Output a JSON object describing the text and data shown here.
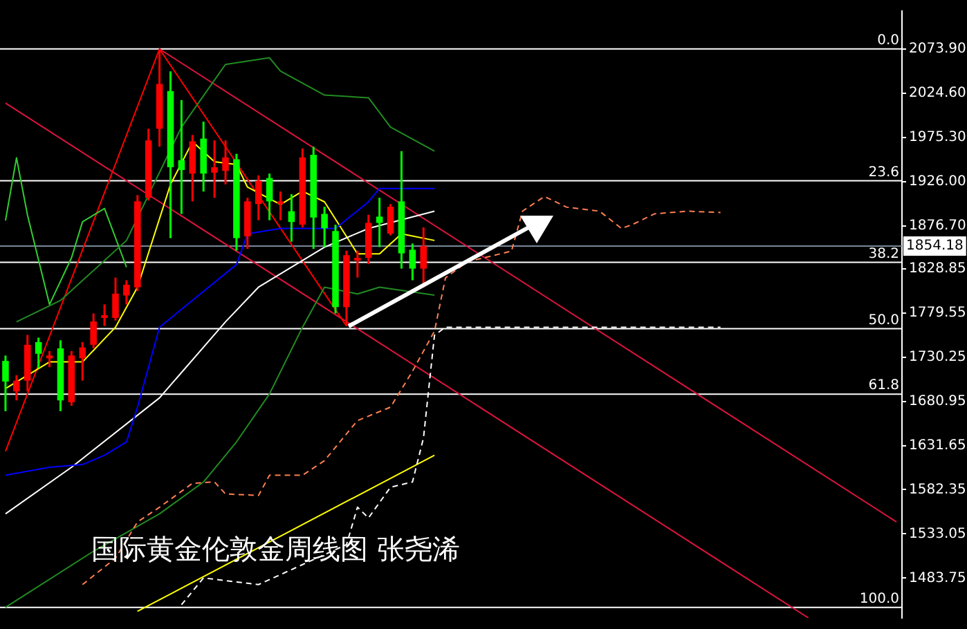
{
  "chart_data": {
    "type": "candlestick",
    "title": "国际黄金伦敦金周线图 张尧浠",
    "categories": [
      null,
      null,
      null,
      null,
      null,
      null,
      null,
      null,
      null,
      null,
      null,
      null,
      null,
      null,
      null,
      null,
      null,
      null,
      null,
      null,
      null,
      null,
      null,
      null,
      null,
      null,
      null,
      null,
      null,
      null,
      null,
      null,
      null,
      null,
      null,
      null,
      null,
      null,
      null,
      null,
      null,
      null,
      null,
      null,
      null,
      null,
      null,
      null,
      null,
      null,
      null,
      null,
      null,
      null,
      null,
      null,
      null,
      null,
      null,
      null,
      null,
      null,
      null,
      null,
      null,
      null,
      null,
      null,
      null,
      null,
      null,
      null,
      null,
      null,
      null,
      null,
      null,
      null,
      null,
      null,
      null,
      null
    ],
    "ohlc": [
      [
        1726,
        1732,
        1670,
        1703
      ],
      [
        1692,
        1710,
        1682,
        1704
      ],
      [
        1704,
        1755,
        1692,
        1744
      ],
      [
        1747,
        1752,
        1718,
        1734
      ],
      [
        1729,
        1737,
        1719,
        1732
      ],
      [
        1740,
        1749,
        1670,
        1682
      ],
      [
        1680,
        1737,
        1676,
        1732
      ],
      [
        1729,
        1747,
        1704,
        1741
      ],
      [
        1744,
        1779,
        1740,
        1770
      ],
      [
        1774,
        1789,
        1765,
        1777
      ],
      [
        1774,
        1819,
        1771,
        1801
      ],
      [
        1799,
        1816,
        1789,
        1811
      ],
      [
        1808,
        1911,
        1804,
        1904
      ],
      [
        1908,
        1985,
        1905,
        1972
      ],
      [
        1985,
        2074,
        1965,
        2035
      ],
      [
        2027,
        2049,
        1863,
        1942
      ],
      [
        1950,
        2017,
        1890,
        1939
      ],
      [
        1935,
        1978,
        1904,
        1971
      ],
      [
        1974,
        1993,
        1915,
        1935
      ],
      [
        1936,
        1972,
        1908,
        1942
      ],
      [
        1938,
        1972,
        1923,
        1953
      ],
      [
        1951,
        1957,
        1849,
        1863
      ],
      [
        1865,
        1908,
        1851,
        1904
      ],
      [
        1901,
        1933,
        1883,
        1927
      ],
      [
        1930,
        1935,
        1883,
        1904
      ],
      [
        1901,
        1915,
        1883,
        1904
      ],
      [
        1893,
        1912,
        1859,
        1881
      ],
      [
        1878,
        1963,
        1875,
        1953
      ],
      [
        1956,
        1965,
        1851,
        1886
      ],
      [
        1890,
        1898,
        1853,
        1874
      ],
      [
        1871,
        1878,
        1779,
        1786
      ],
      [
        1786,
        1849,
        1765,
        1844
      ],
      [
        1838,
        1849,
        1819,
        1841
      ],
      [
        1841,
        1889,
        1834,
        1880
      ],
      [
        1887,
        1908,
        1853,
        1880
      ],
      [
        1868,
        1901,
        1866,
        1898
      ],
      [
        1904,
        1960,
        1829,
        1846
      ],
      [
        1850,
        1857,
        1816,
        1829
      ],
      [
        1829,
        1875,
        1808,
        1854
      ],
      null,
      null,
      null,
      null,
      null,
      null,
      null,
      null,
      null,
      null,
      null,
      null,
      null,
      null,
      null,
      null,
      null,
      null,
      null,
      null,
      null,
      null,
      null,
      null,
      null,
      null,
      null,
      null,
      null,
      null,
      null,
      null,
      null,
      null,
      null,
      null,
      null,
      null,
      null,
      null,
      null,
      null,
      null
    ],
    "colors": [
      "#00ff00",
      "#ff0000",
      "#ff0000",
      "#00ff00",
      "#ff0000",
      "#00ff00",
      "#ff0000",
      "#ff0000",
      "#ff0000",
      "#ff0000",
      "#ff0000",
      "#ff0000",
      "#ff0000",
      "#ff0000",
      "#ff0000",
      "#00ff00",
      "#00ff00",
      "#ff0000",
      "#00ff00",
      "#ff0000",
      "#ff0000",
      "#00ff00",
      "#ff0000",
      "#ff0000",
      "#00ff00",
      "#ff0000",
      "#00ff00",
      "#ff0000",
      "#00ff00",
      "#00ff00",
      "#00ff00",
      "#ff0000",
      "#ff0000",
      "#ff0000",
      "#00ff00",
      "#ff0000",
      "#00ff00",
      "#00ff00",
      "#ff0000",
      null,
      null,
      null,
      null,
      null,
      null,
      null,
      null,
      null,
      null,
      null,
      null,
      null,
      null,
      null,
      null,
      null,
      null,
      null,
      null,
      null,
      null,
      null,
      null,
      null,
      null,
      null,
      null,
      null,
      null,
      null,
      null,
      null,
      null,
      null,
      null,
      null,
      null,
      null,
      null,
      null,
      null,
      null
    ],
    "series": [
      {
        "type": "line",
        "color": "#ff7f50",
        "line_style": "dashed",
        "values": [
          null,
          null,
          null,
          null,
          null,
          null,
          null,
          1476.5,
          null,
          null,
          1506,
          null,
          1546.4,
          null,
          1562.8,
          null,
          null,
          1589.5,
          null,
          1591,
          1577.6,
          null,
          null,
          1576,
          1598.5,
          null,
          null,
          1598.5,
          null,
          1614.8,
          null,
          null,
          1659.5,
          null,
          null,
          1674.4,
          null,
          1714.5,
          null,
          1759.2,
          1818.7,
          null,
          1836.6,
          null,
          null,
          null,
          1848.5,
          1893.1,
          null,
          1909.5,
          null,
          1897.6,
          null,
          null,
          1893.1,
          null,
          1873.8,
          1878.2,
          null,
          1890.1,
          null,
          null,
          1893.1,
          null,
          null,
          1891.6,
          null,
          null,
          null,
          null,
          null,
          null,
          null,
          null,
          null,
          null,
          null,
          null,
          null,
          null,
          null,
          null
        ]
      },
      {
        "type": "line",
        "color": "#ffffff",
        "line_style": "dashed",
        "values": [
          null,
          null,
          null,
          null,
          null,
          null,
          null,
          null,
          null,
          null,
          null,
          null,
          null,
          null,
          null,
          null,
          1454.1,
          null,
          1483.9,
          null,
          null,
          null,
          null,
          1476.5,
          null,
          null,
          null,
          null,
          null,
          null,
          null,
          1521.1,
          1562.8,
          1550.9,
          null,
          1585.1,
          null,
          1591,
          1640.1,
          1754.7,
          1763.6,
          null,
          null,
          null,
          null,
          null,
          null,
          null,
          null,
          null,
          null,
          null,
          null,
          null,
          1763.6,
          null,
          null,
          null,
          null,
          null,
          null,
          null,
          null,
          null,
          null,
          1763.6,
          null,
          null,
          null,
          null,
          null,
          null,
          null,
          null,
          null,
          null,
          null,
          null,
          null,
          null,
          null,
          null
        ]
      },
      {
        "type": "line",
        "color": "#228b22",
        "values": [
          null,
          1769.6,
          null,
          null,
          null,
          1793.5,
          null,
          null,
          null,
          null,
          null,
          1860.4,
          null,
          null,
          null,
          null,
          1986.9,
          null,
          null,
          null,
          2056.8,
          null,
          null,
          null,
          2064.2,
          2049.3,
          null,
          null,
          null,
          2022.6,
          null,
          null,
          null,
          2019.6,
          null,
          1986.9,
          null,
          null,
          null,
          1960.1,
          null,
          null,
          null,
          null,
          null,
          null,
          null,
          null,
          null,
          null,
          null,
          null,
          null,
          null,
          null,
          null,
          null,
          null,
          null,
          null,
          null,
          null,
          null,
          null,
          null,
          null,
          null,
          null,
          null,
          null,
          null,
          null,
          null,
          null,
          null,
          null,
          null,
          null,
          null,
          null,
          null,
          null
        ]
      },
      {
        "type": "line",
        "color": "#228b22",
        "values": [
          1451.2,
          null,
          null,
          null,
          null,
          null,
          null,
          null,
          1513.7,
          null,
          null,
          null,
          null,
          null,
          1555.4,
          null,
          null,
          null,
          1591,
          null,
          null,
          1635.7,
          null,
          null,
          1689.2,
          null,
          null,
          1763.6,
          null,
          1808.3,
          null,
          null,
          1800.8,
          null,
          1808.3,
          null,
          null,
          null,
          null,
          1799.4,
          null,
          null,
          null,
          null,
          null,
          null,
          null,
          null,
          null,
          null,
          null,
          null,
          null,
          null,
          null,
          null,
          null,
          null,
          null,
          null,
          null,
          null,
          null,
          null,
          null,
          null,
          null,
          null,
          null,
          null,
          null,
          null,
          null,
          null,
          null,
          null,
          null,
          null,
          null,
          null,
          null,
          null
        ]
      },
      {
        "type": "line",
        "color": "#0000ff",
        "values": [
          1598.5,
          null,
          null,
          null,
          1607.4,
          null,
          null,
          1610.4,
          null,
          1620.8,
          null,
          1635.7,
          1674.4,
          null,
          1763.6,
          null,
          null,
          null,
          null,
          null,
          null,
          1833.6,
          1867.8,
          null,
          null,
          1873.8,
          null,
          null,
          null,
          null,
          1873.8,
          null,
          null,
          1903.5,
          1918.4,
          null,
          null,
          null,
          null,
          1918.4,
          null,
          null,
          null,
          null,
          null,
          null,
          null,
          null,
          null,
          null,
          null,
          null,
          null,
          null,
          null,
          null,
          null,
          null,
          null,
          null,
          null,
          null,
          null,
          null,
          null,
          null,
          null,
          null,
          null,
          null,
          null,
          null,
          null,
          null,
          null,
          null,
          null,
          null,
          null,
          null,
          null,
          null
        ]
      },
      {
        "type": "line",
        "color": "#ffffff",
        "values": [
          1555.4,
          null,
          null,
          null,
          null,
          null,
          1607.4,
          null,
          null,
          null,
          null,
          null,
          null,
          null,
          1684.8,
          null,
          null,
          null,
          null,
          null,
          1769.6,
          null,
          null,
          1808.3,
          null,
          null,
          null,
          null,
          null,
          1852.9,
          null,
          null,
          null,
          1873.8,
          null,
          null,
          null,
          null,
          null,
          1893.1,
          null,
          null,
          null,
          null,
          null,
          null,
          null,
          null,
          null,
          null,
          null,
          null,
          null,
          null,
          null,
          null,
          null,
          null,
          null,
          null,
          null,
          null,
          null,
          null,
          null,
          null,
          null,
          null,
          null,
          null,
          null,
          null,
          null,
          null,
          null,
          null,
          null,
          null,
          null,
          null,
          null,
          null
        ]
      },
      {
        "type": "line",
        "color": "#ffff00",
        "values": [
          1695.2,
          null,
          null,
          null,
          1724.9,
          null,
          null,
          1724.9,
          null,
          null,
          1763.6,
          null,
          1808.3,
          null,
          null,
          1922.9,
          null,
          1970.5,
          null,
          1948.2,
          null,
          1945.2,
          1919.9,
          null,
          null,
          1900.5,
          null,
          1915.4,
          null,
          1903.5,
          null,
          null,
          1845.5,
          null,
          1845.5,
          null,
          1867.8,
          null,
          null,
          1860.4,
          null,
          null,
          null,
          null,
          null,
          null,
          null,
          null,
          null,
          null,
          null,
          null,
          null,
          null,
          null,
          null,
          null,
          null,
          null,
          null,
          null,
          null,
          null,
          null,
          null,
          null,
          null,
          null,
          null,
          null,
          null,
          null,
          null,
          null,
          null,
          null,
          null,
          null,
          null,
          null,
          null,
          null
        ]
      },
      {
        "type": "line",
        "color": "#ffff00",
        "values": [
          null,
          null,
          null,
          null,
          null,
          null,
          null,
          null,
          null,
          null,
          null,
          null,
          1446.7,
          null,
          null,
          null,
          null,
          null,
          null,
          null,
          null,
          null,
          null,
          null,
          null,
          null,
          null,
          null,
          null,
          null,
          null,
          null,
          null,
          null,
          null,
          null,
          null,
          null,
          null,
          1620.8,
          null,
          null,
          null,
          null,
          null,
          null,
          null,
          null,
          null,
          null,
          null,
          null,
          null,
          null,
          null,
          null,
          null,
          null,
          null,
          null,
          null,
          null,
          null,
          null,
          null,
          null,
          null,
          null,
          null,
          null,
          null,
          null,
          null,
          null,
          null,
          null,
          null,
          null,
          null,
          null,
          null,
          null
        ]
      },
      {
        "type": "line",
        "color": "#32cd32",
        "values": [
          1882.7,
          1952.6,
          1888.6,
          null,
          1788.9,
          null,
          1841,
          1881.2,
          null,
          1896.1,
          null,
          1830.6,
          null,
          null,
          null,
          null,
          null,
          null,
          null,
          null,
          null,
          null,
          null,
          null,
          null,
          null,
          null,
          null,
          null,
          null,
          null,
          null,
          null,
          null,
          null,
          null,
          null,
          null,
          null,
          null,
          null,
          null,
          null,
          null,
          null,
          null,
          null,
          null,
          null,
          null,
          null,
          null,
          null,
          null,
          null,
          null,
          null,
          null,
          null,
          null,
          null,
          null,
          null,
          null,
          null,
          null,
          null,
          null,
          null,
          null,
          null,
          null,
          null,
          null,
          null,
          null,
          null,
          null,
          null,
          null,
          null,
          null
        ]
      },
      {
        "type": "line",
        "color": "#ff0000",
        "values": [
          1625.3,
          null,
          null,
          null,
          null,
          null,
          null,
          null,
          null,
          null,
          null,
          null,
          null,
          null,
          2074,
          null,
          null,
          null,
          null,
          null,
          null,
          null,
          null,
          null,
          null,
          null,
          null,
          null,
          null,
          null,
          null,
          1765,
          null,
          null,
          null,
          null,
          null,
          null,
          null,
          null,
          null,
          null,
          null,
          null,
          null,
          null,
          null,
          null,
          null,
          null,
          null,
          null,
          null,
          null,
          null,
          null,
          null,
          null,
          null,
          null,
          null,
          null,
          null,
          null,
          null,
          null,
          null,
          null,
          null,
          null,
          null,
          null,
          null,
          null,
          null,
          null,
          null,
          null,
          null,
          null,
          null,
          null
        ]
      },
      {
        "type": "line",
        "color": "#dc143c",
        "values": [
          null,
          null,
          null,
          null,
          null,
          null,
          null,
          null,
          null,
          null,
          null,
          null,
          null,
          null,
          2074,
          null,
          null,
          null,
          null,
          null,
          null,
          null,
          null,
          null,
          null,
          null,
          null,
          null,
          null,
          null,
          null,
          null,
          null,
          null,
          null,
          null,
          null,
          null,
          null,
          null,
          null,
          null,
          null,
          null,
          null,
          null,
          null,
          null,
          null,
          null,
          null,
          null,
          null,
          null,
          null,
          null,
          null,
          null,
          null,
          null,
          null,
          null,
          null,
          null,
          null,
          null,
          null,
          null,
          null,
          null,
          null,
          null,
          null,
          null,
          null,
          null,
          null,
          null,
          null,
          null,
          null,
          1546.4
        ]
      },
      {
        "type": "line",
        "color": "#dc143c",
        "values": [
          2013.6,
          null,
          null,
          null,
          null,
          null,
          null,
          null,
          null,
          null,
          null,
          null,
          null,
          null,
          null,
          null,
          null,
          null,
          null,
          null,
          null,
          null,
          null,
          null,
          null,
          null,
          null,
          null,
          null,
          null,
          null,
          null,
          null,
          null,
          null,
          null,
          null,
          null,
          null,
          null,
          null,
          null,
          null,
          null,
          null,
          null,
          null,
          null,
          null,
          null,
          null,
          null,
          null,
          null,
          null,
          null,
          null,
          null,
          null,
          null,
          null,
          null,
          null,
          null,
          null,
          null,
          null,
          null,
          null,
          null,
          null,
          null,
          null,
          1439.3,
          null,
          null,
          null,
          null,
          null,
          null,
          null,
          null
        ]
      }
    ],
    "ylim": [
      1439.3,
      2116.3
    ],
    "yticks": [
      {
        "value": 2073.9,
        "label": "2073.90"
      },
      {
        "value": 2024.6,
        "label": "2024.60"
      },
      {
        "value": 1975.3,
        "label": "1975.30"
      },
      {
        "value": 1926,
        "label": "1926.00"
      },
      {
        "value": 1876.7,
        "label": "1876.70"
      },
      {
        "value": 1828.85,
        "label": "1828.85"
      },
      {
        "value": 1779.55,
        "label": "1779.55"
      },
      {
        "value": 1730.25,
        "label": "1730.25"
      },
      {
        "value": 1680.95,
        "label": "1680.95"
      },
      {
        "value": 1631.65,
        "label": "1631.65"
      },
      {
        "value": 1582.35,
        "label": "1582.35"
      },
      {
        "value": 1533.05,
        "label": "1533.05"
      },
      {
        "value": 1483.75,
        "label": "1483.75"
      }
    ],
    "tick_labels": "y",
    "ref_lines": [
      {
        "axis": "y",
        "value": 2074,
        "color": "#ffffff"
      },
      {
        "axis": "y",
        "value": 1927,
        "color": "#ffffff"
      },
      {
        "axis": "y",
        "value": 1836,
        "color": "#ffffff"
      },
      {
        "axis": "y",
        "value": 1762,
        "color": "#ffffff"
      },
      {
        "axis": "y",
        "value": 1689,
        "color": "#ffffff"
      },
      {
        "axis": "y",
        "value": 1451,
        "color": "#ffffff"
      },
      {
        "axis": "y",
        "value": 1854.18,
        "label": "1854.18",
        "color": "#778899"
      }
    ],
    "annotations": [
      {
        "text": "0.0",
        "y": 2074
      },
      {
        "text": "23.6",
        "y": 1927
      },
      {
        "text": "38.2",
        "y": 1836
      },
      {
        "text": "50.0",
        "y": 1762
      },
      {
        "text": "61.8",
        "y": 1689
      },
      {
        "text": "100.0",
        "y": 1451
      }
    ],
    "legend": false,
    "grid": false,
    "marker": "none"
  }
}
